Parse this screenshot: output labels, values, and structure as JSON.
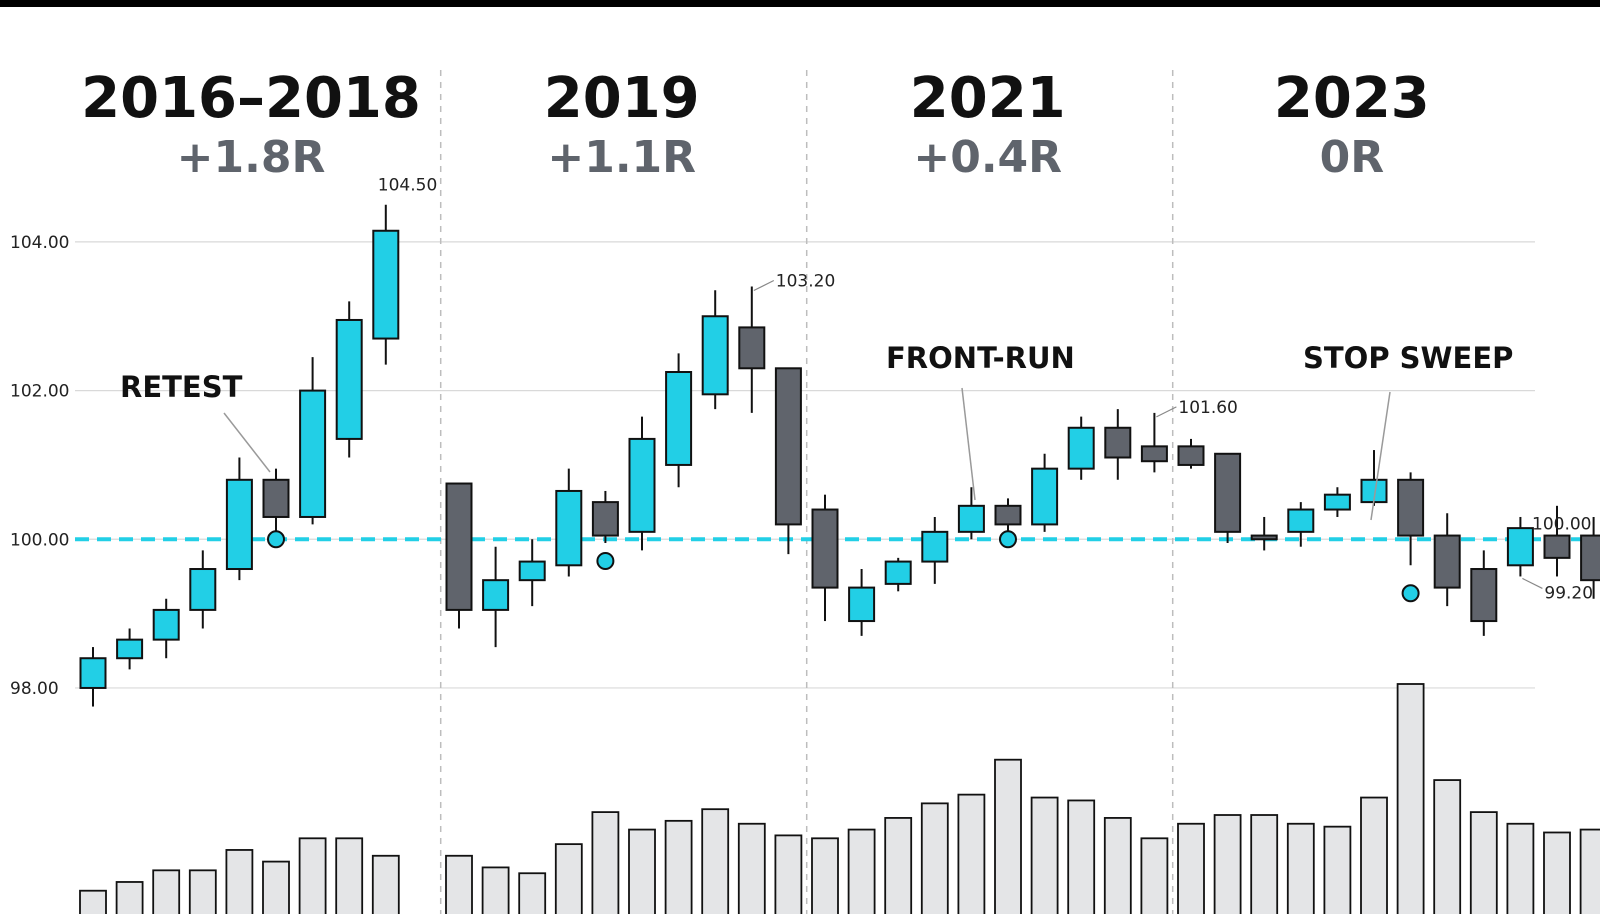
{
  "colors": {
    "bull": "#22cfe6",
    "bear": "#60646c",
    "outline": "#111111",
    "level": "#22cfe6",
    "volume_fill": "#e4e5e7",
    "grid": "#d9d9d9",
    "divider": "#bdbdbd",
    "r_text": "#5f646c"
  },
  "chart_data": {
    "type": "candlestick",
    "title": "",
    "xlabel": "",
    "ylabel": "",
    "ylim": [
      97.3,
      104.9
    ],
    "yticks": [
      "98.00",
      "100.00",
      "102.00",
      "104.00"
    ],
    "grid": true,
    "legend": "none",
    "periods": [
      {
        "title": "2016–2018",
        "result": "+1.8R",
        "start": 0,
        "end": 9
      },
      {
        "title": "2019",
        "result": "+1.1R",
        "start": 10,
        "end": 19
      },
      {
        "title": "2021",
        "result": "+0.4R",
        "start": 20,
        "end": 29
      },
      {
        "title": "2023",
        "result": "0R",
        "start": 30,
        "end": 39
      }
    ],
    "level": {
      "value": 100.0,
      "label": "100.00"
    },
    "candles": [
      {
        "open": 98.0,
        "high": 98.55,
        "low": 97.75,
        "close": 98.4,
        "volume": 8
      },
      {
        "open": 98.4,
        "high": 98.8,
        "low": 98.25,
        "close": 98.65,
        "volume": 11
      },
      {
        "open": 98.65,
        "high": 99.2,
        "low": 98.4,
        "close": 99.05,
        "volume": 15
      },
      {
        "open": 99.05,
        "high": 99.85,
        "low": 98.8,
        "close": 99.6,
        "volume": 15
      },
      {
        "open": 99.6,
        "high": 101.1,
        "low": 99.45,
        "close": 100.8,
        "volume": 22
      },
      {
        "open": 100.8,
        "high": 100.95,
        "low": 100.0,
        "close": 100.3,
        "volume": 18
      },
      {
        "open": 100.3,
        "high": 102.45,
        "low": 100.2,
        "close": 102.0,
        "volume": 26
      },
      {
        "open": 101.35,
        "high": 103.2,
        "low": 101.1,
        "close": 102.95,
        "volume": 26
      },
      {
        "open": 102.7,
        "high": 104.5,
        "low": 102.35,
        "close": 104.15,
        "volume": 20
      },
      {
        "open": 104.15,
        "high": 104.15,
        "low": 104.15,
        "close": 104.15,
        "volume": 0,
        "hidden": true
      },
      {
        "open": 100.75,
        "high": 100.75,
        "low": 98.8,
        "close": 99.05,
        "volume": 20
      },
      {
        "open": 99.05,
        "high": 99.9,
        "low": 98.55,
        "close": 99.45,
        "volume": 16
      },
      {
        "open": 99.45,
        "high": 100.0,
        "low": 99.1,
        "close": 99.7,
        "volume": 14
      },
      {
        "open": 99.65,
        "high": 100.95,
        "low": 99.5,
        "close": 100.65,
        "volume": 24
      },
      {
        "open": 100.5,
        "high": 100.65,
        "low": 99.95,
        "close": 100.05,
        "volume": 35
      },
      {
        "open": 100.1,
        "high": 101.65,
        "low": 99.85,
        "close": 101.35,
        "volume": 29
      },
      {
        "open": 101.0,
        "high": 102.5,
        "low": 100.7,
        "close": 102.25,
        "volume": 32
      },
      {
        "open": 101.95,
        "high": 103.35,
        "low": 101.75,
        "close": 103.0,
        "volume": 36
      },
      {
        "open": 102.85,
        "high": 103.4,
        "low": 101.7,
        "close": 102.3,
        "volume": 31
      },
      {
        "open": 102.3,
        "high": 102.3,
        "low": 99.8,
        "close": 100.2,
        "volume": 27
      },
      {
        "open": 100.4,
        "high": 100.6,
        "low": 98.9,
        "close": 99.35,
        "volume": 26
      },
      {
        "open": 98.9,
        "high": 99.6,
        "low": 98.7,
        "close": 99.35,
        "volume": 29
      },
      {
        "open": 99.4,
        "high": 99.75,
        "low": 99.3,
        "close": 99.7,
        "volume": 33
      },
      {
        "open": 99.7,
        "high": 100.3,
        "low": 99.4,
        "close": 100.1,
        "volume": 38
      },
      {
        "open": 100.1,
        "high": 100.7,
        "low": 100.0,
        "close": 100.45,
        "volume": 41
      },
      {
        "open": 100.45,
        "high": 100.55,
        "low": 100.0,
        "close": 100.2,
        "volume": 53
      },
      {
        "open": 100.2,
        "high": 101.15,
        "low": 100.1,
        "close": 100.95,
        "volume": 40
      },
      {
        "open": 100.95,
        "high": 101.65,
        "low": 100.8,
        "close": 101.5,
        "volume": 39
      },
      {
        "open": 101.5,
        "high": 101.75,
        "low": 100.8,
        "close": 101.1,
        "volume": 33
      },
      {
        "open": 101.25,
        "high": 101.7,
        "low": 100.9,
        "close": 101.05,
        "volume": 26
      },
      {
        "open": 101.25,
        "high": 101.35,
        "low": 100.95,
        "close": 101.0,
        "volume": 31
      },
      {
        "open": 101.15,
        "high": 101.15,
        "low": 99.95,
        "close": 100.1,
        "volume": 34
      },
      {
        "open": 100.05,
        "high": 100.3,
        "low": 99.85,
        "close": 100.0,
        "volume": 34
      },
      {
        "open": 100.1,
        "high": 100.5,
        "low": 99.9,
        "close": 100.4,
        "volume": 31
      },
      {
        "open": 100.4,
        "high": 100.7,
        "low": 100.3,
        "close": 100.6,
        "volume": 30
      },
      {
        "open": 100.5,
        "high": 101.2,
        "low": 100.45,
        "close": 100.8,
        "volume": 40
      },
      {
        "open": 100.8,
        "high": 100.9,
        "low": 99.65,
        "close": 100.05,
        "volume": 79
      },
      {
        "open": 100.05,
        "high": 100.35,
        "low": 99.1,
        "close": 99.35,
        "volume": 46
      },
      {
        "open": 99.6,
        "high": 99.85,
        "low": 98.7,
        "close": 98.9,
        "volume": 35
      },
      {
        "open": 99.65,
        "high": 100.3,
        "low": 99.5,
        "close": 100.15,
        "volume": 31
      }
    ],
    "extra_candles": [
      {
        "open": 100.05,
        "high": 100.45,
        "low": 99.5,
        "close": 99.75,
        "volume": 28
      },
      {
        "open": 100.05,
        "high": 100.3,
        "low": 99.2,
        "close": 99.45,
        "volume": 29
      }
    ],
    "price_labels": [
      {
        "candle": 8,
        "text": "104.50"
      },
      {
        "candle": 18,
        "text": "103.20"
      },
      {
        "candle": 29,
        "text": "101.60"
      },
      {
        "candle": 39,
        "text": "99.20"
      }
    ],
    "annotations": [
      {
        "label": "RETEST",
        "candle": 5
      },
      {
        "label": "FRONT-RUN",
        "candle": 25
      },
      {
        "label": "STOP SWEEP",
        "candle": 37
      }
    ],
    "touch_markers": [
      5,
      14,
      25,
      36
    ]
  }
}
